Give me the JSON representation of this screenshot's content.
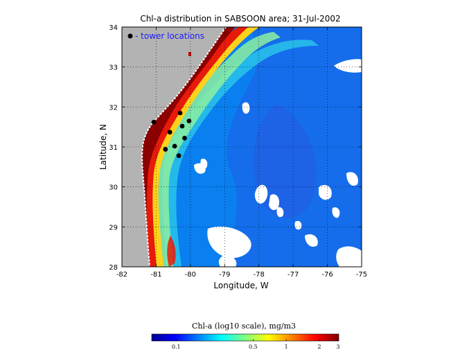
{
  "map": {
    "title": "Chl-a distribution in SABSOON area; 31-Jul-2002",
    "xlabel": "Longitude, W",
    "ylabel": "Latitude, N",
    "xlim": [
      -82,
      -75
    ],
    "ylim": [
      28,
      34
    ],
    "x_ticks": [
      {
        "value": -82,
        "label": "-82"
      },
      {
        "value": -81,
        "label": "-81"
      },
      {
        "value": -80,
        "label": "-80"
      },
      {
        "value": -79,
        "label": "-79"
      },
      {
        "value": -78,
        "label": "-78"
      },
      {
        "value": -77,
        "label": "-77"
      },
      {
        "value": -76,
        "label": "-76"
      },
      {
        "value": -75,
        "label": "-75"
      }
    ],
    "y_ticks": [
      {
        "value": 28,
        "label": "28"
      },
      {
        "value": 29,
        "label": "29"
      },
      {
        "value": 30,
        "label": "30"
      },
      {
        "value": 31,
        "label": "31"
      },
      {
        "value": 32,
        "label": "32"
      },
      {
        "value": 33,
        "label": "33"
      },
      {
        "value": 34,
        "label": "34"
      }
    ],
    "grid": "dotted",
    "legend": {
      "label": "- tower locations",
      "color": "#1a1aff",
      "placement": "top-left"
    },
    "colors": {
      "land": "#b3b3b3",
      "cloud": "#ffffff",
      "ocean": "#0a7ff0",
      "tower_marker": "#000000"
    },
    "towers": [
      {
        "lon": -81.07,
        "lat": 31.62
      },
      {
        "lon": -80.3,
        "lat": 31.85
      },
      {
        "lon": -80.04,
        "lat": 31.65
      },
      {
        "lon": -80.24,
        "lat": 31.52
      },
      {
        "lon": -80.6,
        "lat": 31.37
      },
      {
        "lon": -80.17,
        "lat": 31.22
      },
      {
        "lon": -80.46,
        "lat": 31.02
      },
      {
        "lon": -80.73,
        "lat": 30.94
      },
      {
        "lon": -80.34,
        "lat": 30.78
      }
    ]
  },
  "colorbar": {
    "title": "Chl-a (log10 scale), mg/m3",
    "ticks": [
      {
        "value": 0.1,
        "label": "0.1"
      },
      {
        "value": 0.5,
        "label": "0.5"
      },
      {
        "value": 1,
        "label": "1"
      },
      {
        "value": 2,
        "label": "2"
      },
      {
        "value": 3,
        "label": "3"
      }
    ],
    "stops": [
      "#00008f",
      "#0000ff",
      "#0080ff",
      "#00ffff",
      "#80ff80",
      "#ffff00",
      "#ff8000",
      "#ff0000",
      "#800000"
    ]
  }
}
